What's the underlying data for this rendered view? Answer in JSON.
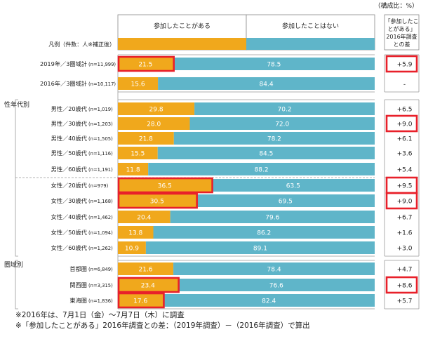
{
  "chart_data": {
    "type": "bar",
    "stacked": true,
    "unit_note": "（構成比：%）",
    "series": [
      {
        "name": "参加したことがある",
        "color": "#f0a81c"
      },
      {
        "name": "参加したことはない",
        "color": "#5fb5c9"
      }
    ],
    "legend_row_label": "凡例（件数：人※補正後）",
    "diff_header": [
      "「参加したこ",
      "とがある」",
      "2016年調査",
      "との差"
    ],
    "groups": [
      {
        "label": "",
        "rows": [
          {
            "label": "2019年／3圏域計",
            "n": "(n=11,999)",
            "v1": 21.5,
            "v2": 78.5,
            "diff": "+5.9",
            "hl_bar": true,
            "hl_diff": true
          },
          {
            "label": "2016年／3圏域計",
            "n": "(n=10,117)",
            "v1": 15.6,
            "v2": 84.4,
            "diff": "-",
            "hl_bar": false,
            "hl_diff": false
          }
        ]
      },
      {
        "label": "性年代別",
        "rows": [
          {
            "label": "男性／20歳代",
            "n": "(n=1,019)",
            "v1": 29.8,
            "v2": 70.2,
            "diff": "+6.5",
            "hl_bar": false,
            "hl_diff": false
          },
          {
            "label": "男性／30歳代",
            "n": "(n=1,203)",
            "v1": 28.0,
            "v2": 72.0,
            "diff": "+9.0",
            "hl_bar": false,
            "hl_diff": true
          },
          {
            "label": "男性／40歳代",
            "n": "(n=1,505)",
            "v1": 21.8,
            "v2": 78.2,
            "diff": "+6.1",
            "hl_bar": false,
            "hl_diff": false
          },
          {
            "label": "男性／50歳代",
            "n": "(n=1,116)",
            "v1": 15.5,
            "v2": 84.5,
            "diff": "+3.6",
            "hl_bar": false,
            "hl_diff": false
          },
          {
            "label": "男性／60歳代",
            "n": "(n=1,191)",
            "v1": 11.8,
            "v2": 88.2,
            "diff": "+5.4",
            "hl_bar": false,
            "hl_diff": false
          },
          {
            "label": "女性／20歳代",
            "n": "(n=979)",
            "v1": 36.5,
            "v2": 63.5,
            "diff": "+9.5",
            "hl_bar": true,
            "hl_diff": true
          },
          {
            "label": "女性／30歳代",
            "n": "(n=1,168)",
            "v1": 30.5,
            "v2": 69.5,
            "diff": "+9.0",
            "hl_bar": true,
            "hl_diff": true
          },
          {
            "label": "女性／40歳代",
            "n": "(n=1,462)",
            "v1": 20.4,
            "v2": 79.6,
            "diff": "+6.7",
            "hl_bar": false,
            "hl_diff": false
          },
          {
            "label": "女性／50歳代",
            "n": "(n=1,094)",
            "v1": 13.8,
            "v2": 86.2,
            "diff": "+1.6",
            "hl_bar": false,
            "hl_diff": false
          },
          {
            "label": "女性／60歳代",
            "n": "(n=1,262)",
            "v1": 10.9,
            "v2": 89.1,
            "diff": "+3.0",
            "hl_bar": false,
            "hl_diff": false
          }
        ]
      },
      {
        "label": "圏域別",
        "rows": [
          {
            "label": "首都圏",
            "n": "(n=6,849)",
            "v1": 21.6,
            "v2": 78.4,
            "diff": "+4.7",
            "hl_bar": false,
            "hl_diff": false
          },
          {
            "label": "関西圏",
            "n": "(n=3,315)",
            "v1": 23.4,
            "v2": 76.6,
            "diff": "+8.6",
            "hl_bar": true,
            "hl_diff": true
          },
          {
            "label": "東海圏",
            "n": "(n=1,836)",
            "v1": 17.6,
            "v2": 82.4,
            "diff": "+5.7",
            "hl_bar": true,
            "hl_diff": false
          }
        ]
      }
    ],
    "highlight_color": "#e8202a"
  },
  "footnotes": [
    "※2016年は、7月1日（金）～7月7日（木）に調査",
    "※「参加したことがある」2016年調査との差：（2019年調査）－（2016年調査）で算出"
  ]
}
